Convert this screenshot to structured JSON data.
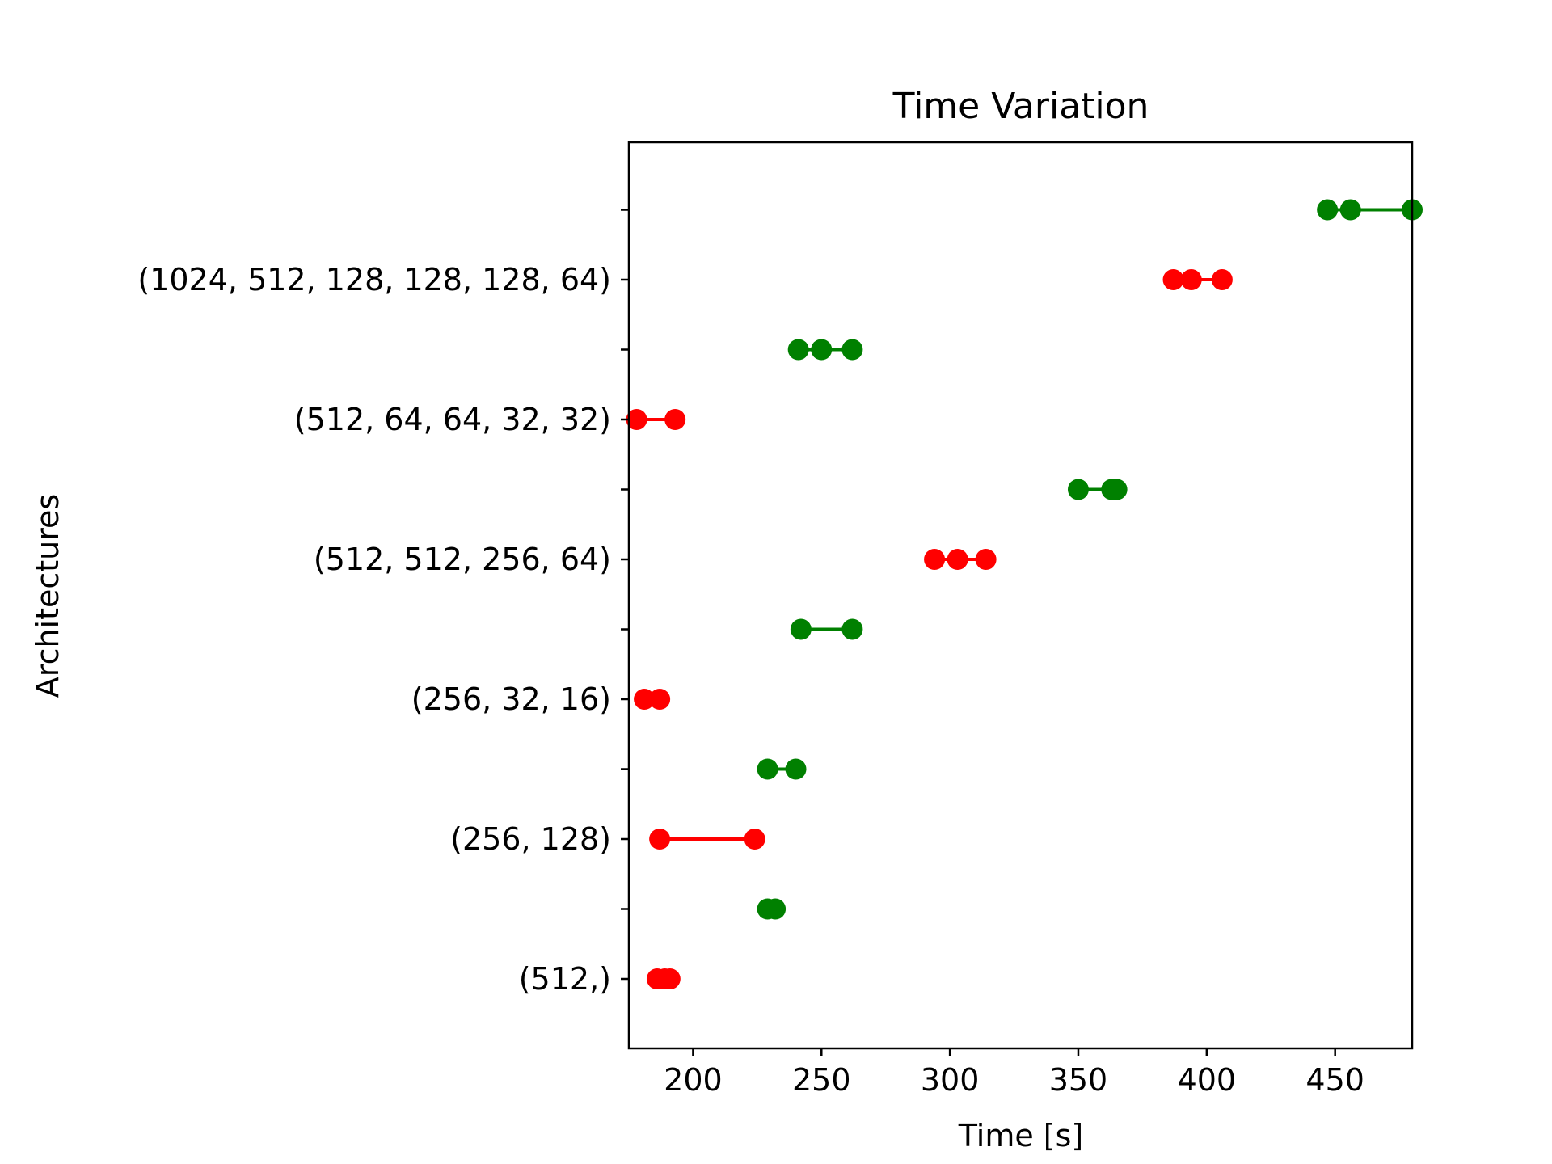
{
  "chart_data": {
    "type": "scatter",
    "title": "Time Variation",
    "xlabel": "Time [s]",
    "ylabel": "Architectures",
    "xlim": [
      175,
      480
    ],
    "x_ticks": [
      200,
      250,
      300,
      350,
      400,
      450
    ],
    "y_categories": [
      "(512,)",
      "(256, 128)",
      "(256, 32, 16)",
      "(512, 512, 256, 64)",
      "(512, 64, 64, 32, 32)",
      "(1024, 512, 128, 128, 128, 64)"
    ],
    "grid": false,
    "series": [
      {
        "color": "#ff0000",
        "points": [
          {
            "category": "(512,)",
            "values": [
              186,
              189,
              191
            ]
          },
          {
            "category": "(256, 128)",
            "values": [
              187,
              224
            ]
          },
          {
            "category": "(256, 32, 16)",
            "values": [
              181,
              187
            ]
          },
          {
            "category": "(512, 512, 256, 64)",
            "values": [
              294,
              303,
              314
            ]
          },
          {
            "category": "(512, 64, 64, 32, 32)",
            "values": [
              178,
              193
            ]
          },
          {
            "category": "(1024, 512, 128, 128, 128, 64)",
            "values": [
              387,
              394,
              406
            ]
          }
        ]
      },
      {
        "color": "#008000",
        "points": [
          {
            "category": "(512,)",
            "values": [
              229,
              232
            ]
          },
          {
            "category": "(256, 128)",
            "values": [
              229,
              240
            ]
          },
          {
            "category": "(256, 32, 16)",
            "values": [
              242,
              262
            ]
          },
          {
            "category": "(512, 512, 256, 64)",
            "values": [
              350,
              363,
              365
            ]
          },
          {
            "category": "(512, 64, 64, 32, 32)",
            "values": [
              241,
              250,
              262
            ]
          },
          {
            "category": "(1024, 512, 128, 128, 128, 64)",
            "values": [
              447,
              456,
              480
            ]
          }
        ]
      }
    ]
  }
}
